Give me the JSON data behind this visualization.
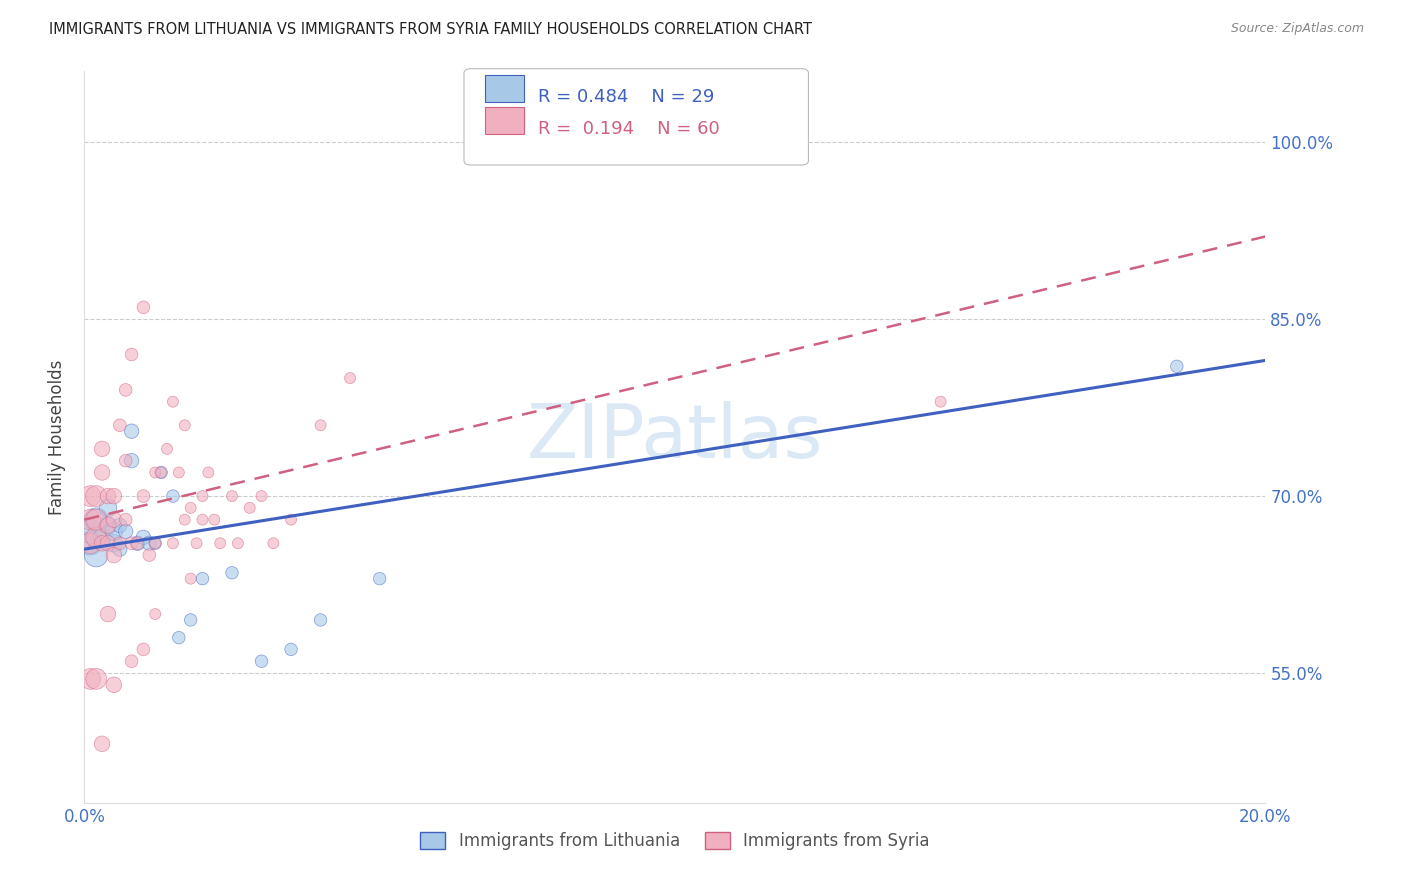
{
  "title": "IMMIGRANTS FROM LITHUANIA VS IMMIGRANTS FROM SYRIA FAMILY HOUSEHOLDS CORRELATION CHART",
  "source": "Source: ZipAtlas.com",
  "ylabel": "Family Households",
  "legend_lithuania": "Immigrants from Lithuania",
  "legend_syria": "Immigrants from Syria",
  "R_lithuania": 0.484,
  "N_lithuania": 29,
  "R_syria": 0.194,
  "N_syria": 60,
  "color_lithuania": "#a8c8e8",
  "color_syria": "#f0b0c0",
  "trendline_lithuania_color": "#4060c0",
  "trendline_syria_color": "#d06080",
  "xlim": [
    0.0,
    0.2
  ],
  "ylim": [
    0.44,
    1.06
  ],
  "yticks": [
    0.55,
    0.7,
    0.85,
    1.0
  ],
  "xticks": [
    0.0,
    0.04,
    0.08,
    0.12,
    0.16,
    0.2
  ],
  "ytick_labels": [
    "55.0%",
    "70.0%",
    "85.0%",
    "100.0%"
  ],
  "watermark": "ZIPatlas",
  "lithuania_x": [
    0.001,
    0.001,
    0.002,
    0.002,
    0.003,
    0.004,
    0.004,
    0.005,
    0.005,
    0.006,
    0.006,
    0.007,
    0.008,
    0.008,
    0.009,
    0.01,
    0.011,
    0.012,
    0.013,
    0.015,
    0.016,
    0.018,
    0.02,
    0.025,
    0.03,
    0.035,
    0.04,
    0.05,
    0.185
  ],
  "lithuania_y": [
    0.66,
    0.67,
    0.65,
    0.68,
    0.665,
    0.675,
    0.69,
    0.66,
    0.67,
    0.655,
    0.675,
    0.67,
    0.73,
    0.755,
    0.66,
    0.665,
    0.66,
    0.66,
    0.72,
    0.7,
    0.58,
    0.595,
    0.63,
    0.635,
    0.56,
    0.57,
    0.595,
    0.63,
    0.81
  ],
  "syria_x": [
    0.001,
    0.001,
    0.001,
    0.002,
    0.002,
    0.002,
    0.003,
    0.003,
    0.003,
    0.004,
    0.004,
    0.004,
    0.005,
    0.005,
    0.005,
    0.006,
    0.006,
    0.007,
    0.007,
    0.007,
    0.008,
    0.008,
    0.009,
    0.01,
    0.01,
    0.011,
    0.012,
    0.012,
    0.013,
    0.014,
    0.015,
    0.015,
    0.016,
    0.017,
    0.017,
    0.018,
    0.019,
    0.02,
    0.02,
    0.021,
    0.022,
    0.023,
    0.025,
    0.026,
    0.028,
    0.03,
    0.032,
    0.035,
    0.04,
    0.045,
    0.001,
    0.002,
    0.003,
    0.004,
    0.005,
    0.008,
    0.01,
    0.012,
    0.018,
    0.145
  ],
  "syria_y": [
    0.66,
    0.68,
    0.7,
    0.665,
    0.68,
    0.7,
    0.66,
    0.72,
    0.74,
    0.66,
    0.675,
    0.7,
    0.65,
    0.68,
    0.7,
    0.66,
    0.76,
    0.68,
    0.73,
    0.79,
    0.66,
    0.82,
    0.66,
    0.7,
    0.86,
    0.65,
    0.66,
    0.72,
    0.72,
    0.74,
    0.66,
    0.78,
    0.72,
    0.68,
    0.76,
    0.69,
    0.66,
    0.68,
    0.7,
    0.72,
    0.68,
    0.66,
    0.7,
    0.66,
    0.69,
    0.7,
    0.66,
    0.68,
    0.76,
    0.8,
    0.545,
    0.545,
    0.49,
    0.6,
    0.54,
    0.56,
    0.57,
    0.6,
    0.63,
    0.78
  ],
  "syria_sizes_small": [
    0.001,
    0.002,
    0.003,
    0.004,
    0.005,
    0.008,
    0.01,
    0.012,
    0.018,
    0.145
  ]
}
